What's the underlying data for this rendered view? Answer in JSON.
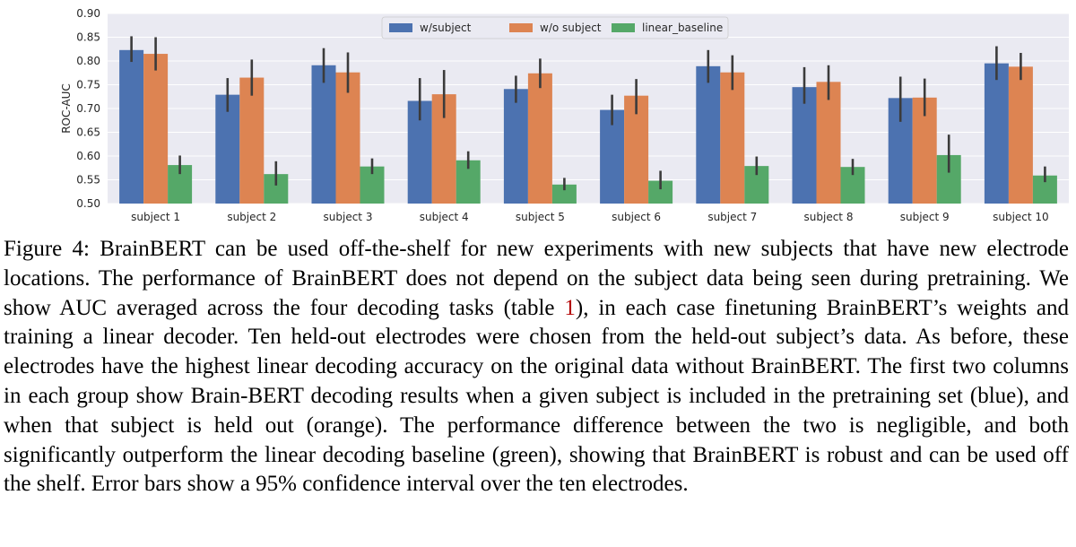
{
  "chart_data": {
    "type": "bar",
    "title": "",
    "xlabel": "",
    "ylabel": "ROC-AUC",
    "ylim": [
      0.5,
      0.9
    ],
    "yticks": [
      "0.50",
      "0.55",
      "0.60",
      "0.65",
      "0.70",
      "0.75",
      "0.80",
      "0.85",
      "0.90"
    ],
    "grid": true,
    "legend_position": "top-center",
    "categories": [
      "subject 1",
      "subject 2",
      "subject 3",
      "subject 4",
      "subject 5",
      "subject 6",
      "subject 7",
      "subject 8",
      "subject 9",
      "subject 10"
    ],
    "series": [
      {
        "name": "w/subject",
        "color": "#4c72b0",
        "values": [
          0.823,
          0.729,
          0.791,
          0.716,
          0.741,
          0.697,
          0.789,
          0.745,
          0.722,
          0.795
        ],
        "ci_low": [
          0.798,
          0.693,
          0.754,
          0.675,
          0.712,
          0.665,
          0.754,
          0.71,
          0.672,
          0.76
        ],
        "ci_high": [
          0.852,
          0.764,
          0.827,
          0.764,
          0.769,
          0.729,
          0.823,
          0.787,
          0.767,
          0.831
        ]
      },
      {
        "name": "w/o subject",
        "color": "#dd8452",
        "values": [
          0.815,
          0.765,
          0.776,
          0.73,
          0.774,
          0.727,
          0.776,
          0.756,
          0.723,
          0.788
        ],
        "ci_low": [
          0.78,
          0.727,
          0.733,
          0.68,
          0.743,
          0.688,
          0.739,
          0.718,
          0.684,
          0.76
        ],
        "ci_high": [
          0.85,
          0.803,
          0.818,
          0.781,
          0.805,
          0.762,
          0.812,
          0.791,
          0.763,
          0.817
        ]
      },
      {
        "name": "linear_baseline",
        "color": "#55a868",
        "values": [
          0.581,
          0.562,
          0.578,
          0.591,
          0.54,
          0.548,
          0.579,
          0.577,
          0.602,
          0.559
        ],
        "ci_low": [
          0.562,
          0.538,
          0.562,
          0.573,
          0.528,
          0.53,
          0.56,
          0.56,
          0.565,
          0.545
        ],
        "ci_high": [
          0.601,
          0.589,
          0.595,
          0.61,
          0.554,
          0.569,
          0.599,
          0.594,
          0.645,
          0.578
        ]
      }
    ]
  },
  "caption": {
    "label": "Figure 4:",
    "text_before_ref": "BrainBERT can be used off-the-shelf for new experiments with new subjects that have new electrode locations. The performance of BrainBERT does not depend on the subject data being seen during pretraining. We show AUC averaged across the four decoding tasks (table",
    "ref": "1",
    "text_after_ref": "), in each case finetuning BrainBERT’s weights and training a linear decoder. Ten held-out electrodes were chosen from the held-out subject’s data. As before, these electrodes have the highest linear decoding accuracy on the original data without BrainBERT. The first two columns in each group show Brain-BERT decoding results when a given subject is included in the pretraining set (blue), and when that subject is held out (orange). The performance difference between the two is negligible, and both significantly outperform the linear decoding baseline (green), showing that BrainBERT is robust and can be used off the shelf. Error bars show a 95% confidence interval over the ten electrodes."
  }
}
